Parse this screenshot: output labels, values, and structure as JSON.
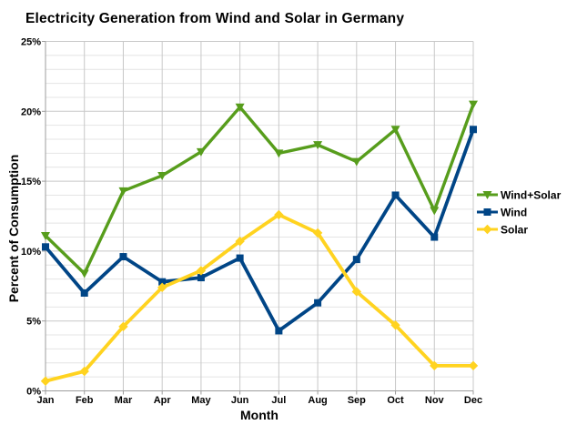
{
  "chart_data": {
    "type": "line",
    "title": "Electricity Generation from Wind and Solar in Germany",
    "xlabel": "Month",
    "ylabel": "Percent of Consumption",
    "categories": [
      "Jan",
      "Feb",
      "Mar",
      "Apr",
      "May",
      "Jun",
      "Jul",
      "Aug",
      "Sep",
      "Oct",
      "Nov",
      "Dec"
    ],
    "ylim": [
      0,
      25
    ],
    "y_major_step": 5,
    "y_minor_step": 1,
    "y_tick_labels": [
      "0%",
      "5%",
      "10%",
      "15%",
      "20%",
      "25%"
    ],
    "grid": true,
    "legend_position": "right",
    "series": [
      {
        "name": "Wind+Solar",
        "color": "#579d1c",
        "marker": "arrow-down",
        "values": [
          11.1,
          8.4,
          14.3,
          15.4,
          17.1,
          20.3,
          17.0,
          17.6,
          16.4,
          18.7,
          12.9,
          20.5
        ]
      },
      {
        "name": "Wind",
        "color": "#004586",
        "marker": "square",
        "values": [
          10.3,
          7.0,
          9.6,
          7.8,
          8.1,
          9.5,
          4.3,
          6.3,
          9.4,
          14.0,
          11.0,
          18.7
        ]
      },
      {
        "name": "Solar",
        "color": "#ffd320",
        "marker": "diamond",
        "values": [
          0.7,
          1.4,
          4.6,
          7.4,
          8.6,
          10.7,
          12.6,
          11.3,
          7.1,
          4.7,
          1.8,
          1.8
        ]
      }
    ],
    "style_colors": {
      "grid_minor": "#e4e4e4",
      "grid_major": "#c8c8c8",
      "axis": "#9c9c9c",
      "text": "#000000",
      "background": "#ffffff"
    }
  }
}
